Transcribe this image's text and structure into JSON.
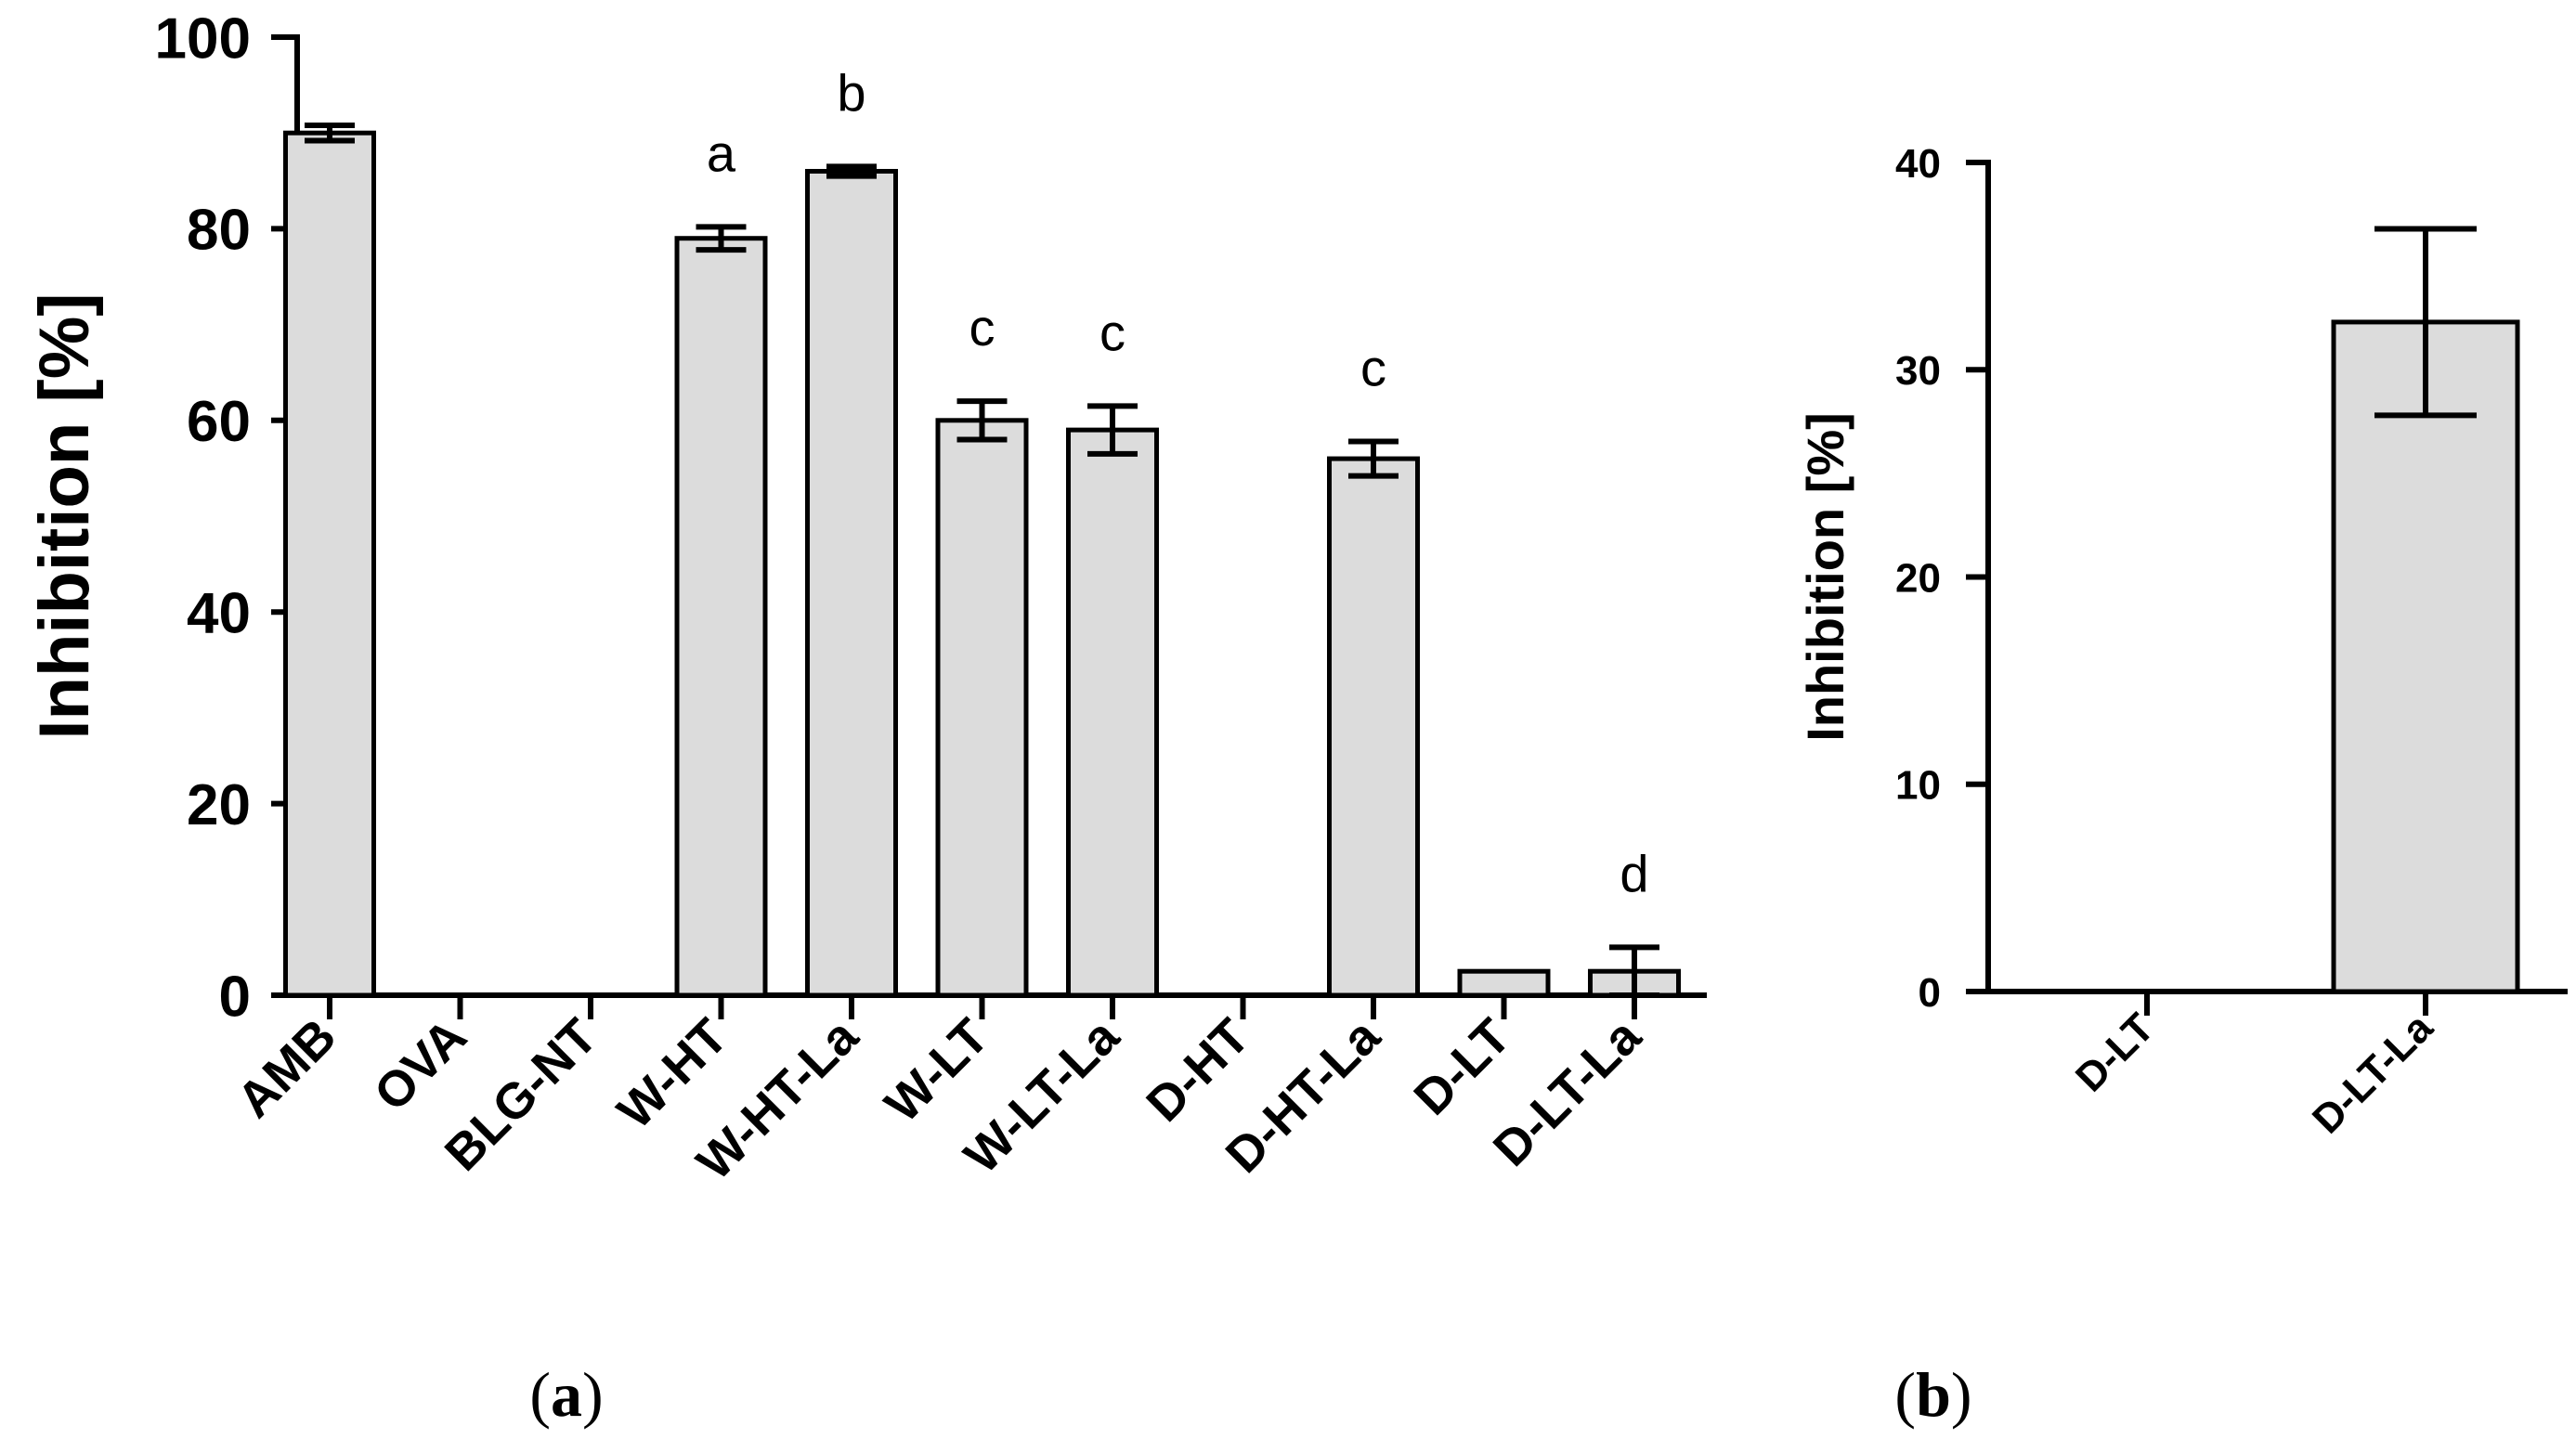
{
  "chart_data": [
    {
      "panel": "a",
      "panel_label": {
        "open": "(",
        "letter": "a",
        "close": ")"
      },
      "type": "bar",
      "title": "",
      "xlabel": "",
      "ylabel": "Inhibition [%]",
      "ylim": [
        0,
        100
      ],
      "yticks": [
        0,
        20,
        40,
        60,
        80,
        100
      ],
      "categories": [
        "AMB",
        "OVA",
        "BLG-NT",
        "W-HT",
        "W-HT-La",
        "W-LT",
        "W-LT-La",
        "D-HT",
        "D-HT-La",
        "D-LT",
        "D-LT-La"
      ],
      "values": [
        90,
        0,
        0,
        79,
        86,
        60,
        59,
        0,
        56,
        2.5,
        2.5
      ],
      "errors": [
        0.8,
        0,
        0,
        1.2,
        0.5,
        2,
        2.5,
        0,
        1.8,
        0,
        2.5
      ],
      "significance": [
        "",
        "",
        "",
        "a",
        "b",
        "c",
        "c",
        "",
        "c",
        "",
        "d"
      ]
    },
    {
      "panel": "b",
      "panel_label": {
        "open": "(",
        "letter": "b",
        "close": ")"
      },
      "type": "bar",
      "title": "",
      "xlabel": "",
      "ylabel": "Inhibition [%]",
      "ylim": [
        0,
        40
      ],
      "yticks": [
        0,
        10,
        20,
        30,
        40
      ],
      "categories": [
        "D-LT",
        "D-LT-La"
      ],
      "values": [
        0,
        32.3
      ],
      "errors": [
        0,
        4.5
      ]
    }
  ]
}
